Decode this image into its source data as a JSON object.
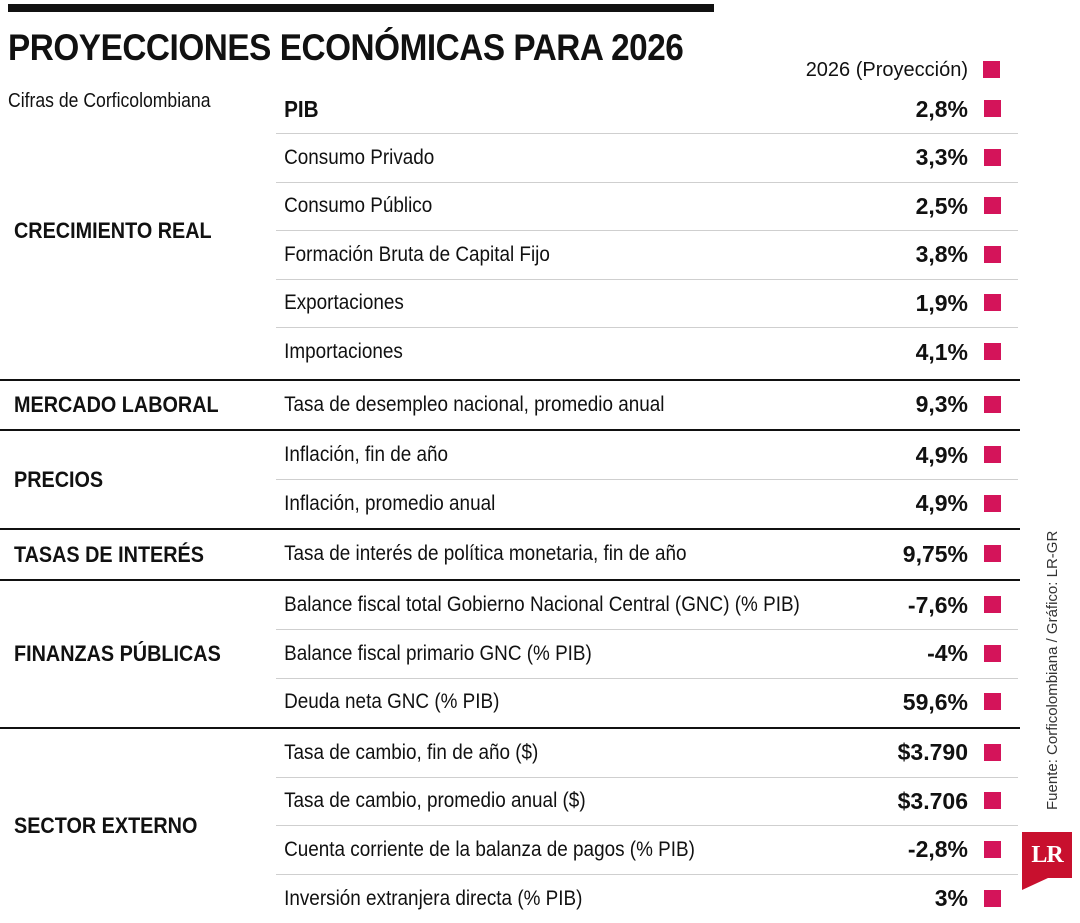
{
  "title": "PROYECCIONES ECONÓMICAS PARA 2026",
  "subtitle": "Cifras de Corficolombiana",
  "column_header": "2026 (Proyección)",
  "accent_color": "#d4145a",
  "groups": [
    {
      "category": "CRECIMIENTO REAL",
      "rows": [
        {
          "label": "PIB",
          "value": "2,8%",
          "strong": true
        },
        {
          "label": "Consumo Privado",
          "value": "3,3%"
        },
        {
          "label": "Consumo Público",
          "value": "2,5%"
        },
        {
          "label": "Formación Bruta de Capital Fijo",
          "value": "3,8%"
        },
        {
          "label": "Exportaciones",
          "value": "1,9%"
        },
        {
          "label": "Importaciones",
          "value": "4,1%"
        }
      ]
    },
    {
      "category": "MERCADO LABORAL",
      "rows": [
        {
          "label": "Tasa de desempleo nacional, promedio anual",
          "value": "9,3%"
        }
      ]
    },
    {
      "category": "PRECIOS",
      "rows": [
        {
          "label": "Inflación, fin de año",
          "value": "4,9%"
        },
        {
          "label": "Inflación, promedio anual",
          "value": "4,9%"
        }
      ]
    },
    {
      "category": "TASAS DE INTERÉS",
      "rows": [
        {
          "label": "Tasa de interés de política monetaria, fin de año",
          "value": "9,75%"
        }
      ]
    },
    {
      "category": "FINANZAS PÚBLICAS",
      "rows": [
        {
          "label": "Balance fiscal total Gobierno Nacional Central (GNC) (% PIB)",
          "value": "-7,6%"
        },
        {
          "label": "Balance fiscal primario GNC (% PIB)",
          "value": "-4%"
        },
        {
          "label": "Deuda neta GNC (% PIB)",
          "value": "59,6%"
        }
      ]
    },
    {
      "category": "SECTOR EXTERNO",
      "rows": [
        {
          "label": "Tasa de cambio, fin de año ($)",
          "value": "$3.790"
        },
        {
          "label": "Tasa de cambio, promedio anual ($)",
          "value": "$3.706"
        },
        {
          "label": "Cuenta corriente de la balanza de pagos (% PIB)",
          "value": "-2,8%"
        },
        {
          "label": "Inversión extranjera directa (% PIB)",
          "value": "3%"
        }
      ]
    }
  ],
  "source": "Fuente: Corficolombiana / Gráfico: LR-GR",
  "logo": "LR"
}
